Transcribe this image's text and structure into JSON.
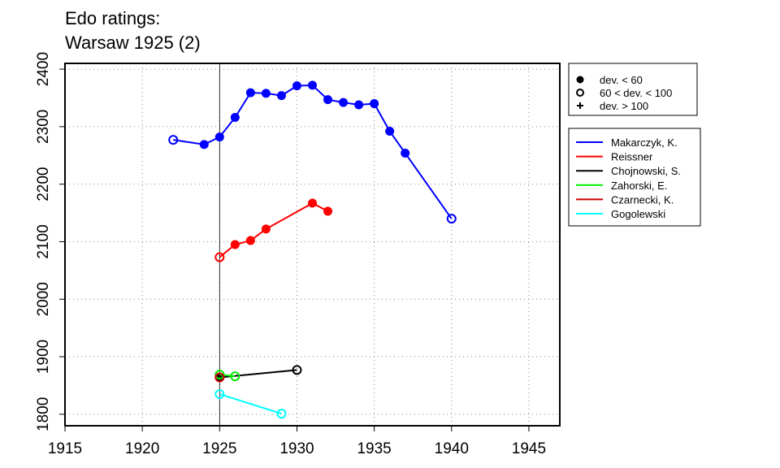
{
  "chart_data": {
    "type": "line",
    "title_lines": [
      "Edo ratings:",
      "Warsaw 1925 (2)"
    ],
    "xlim": [
      1915,
      1947
    ],
    "ylim": [
      1780,
      2410
    ],
    "x_ticks": [
      1915,
      1920,
      1925,
      1930,
      1935,
      1940,
      1945
    ],
    "y_ticks": [
      1800,
      1900,
      2000,
      2100,
      2200,
      2300,
      2400
    ],
    "grid": true,
    "reference_line_x": 1925,
    "symbol_legend": [
      {
        "symbol": "filled",
        "label": "dev. < 60"
      },
      {
        "symbol": "open",
        "label": "60 < dev. < 100"
      },
      {
        "symbol": "plus",
        "label": "dev. > 100"
      }
    ],
    "series": [
      {
        "name": "Makarczyk, K.",
        "color": "#0000ff",
        "points": [
          [
            1922,
            2277,
            "open"
          ],
          [
            1924,
            2269,
            "filled"
          ],
          [
            1925,
            2282,
            "filled"
          ],
          [
            1926,
            2316,
            "filled"
          ],
          [
            1927,
            2359,
            "filled"
          ],
          [
            1928,
            2358,
            "filled"
          ],
          [
            1929,
            2354,
            "filled"
          ],
          [
            1930,
            2371,
            "filled"
          ],
          [
            1931,
            2372,
            "filled"
          ],
          [
            1932,
            2347,
            "filled"
          ],
          [
            1933,
            2342,
            "filled"
          ],
          [
            1934,
            2338,
            "filled"
          ],
          [
            1935,
            2340,
            "filled"
          ],
          [
            1936,
            2292,
            "filled"
          ],
          [
            1937,
            2254,
            "filled"
          ],
          [
            1940,
            2140,
            "open"
          ]
        ]
      },
      {
        "name": "Reissner",
        "color": "#ff0000",
        "points": [
          [
            1925,
            2073,
            "open"
          ],
          [
            1926,
            2095,
            "filled"
          ],
          [
            1927,
            2102,
            "filled"
          ],
          [
            1928,
            2122,
            "filled"
          ],
          [
            1931,
            2167,
            "filled"
          ],
          [
            1932,
            2153,
            "filled"
          ]
        ]
      },
      {
        "name": "Chojnowski, S.",
        "color": "#000000",
        "points": [
          [
            1925,
            1864,
            "filled"
          ],
          [
            1930,
            1877,
            "open"
          ]
        ]
      },
      {
        "name": "Zahorski, E.",
        "color": "#00ee00",
        "points": [
          [
            1925,
            1869,
            "open"
          ],
          [
            1926,
            1866,
            "open"
          ]
        ]
      },
      {
        "name": "Czarnecki, K.",
        "color": "#cc0000",
        "points": [
          [
            1925,
            1864,
            "open"
          ]
        ]
      },
      {
        "name": "Gogolewski",
        "color": "#00ffff",
        "points": [
          [
            1925,
            1835,
            "open"
          ],
          [
            1929,
            1801,
            "open"
          ]
        ]
      }
    ]
  }
}
